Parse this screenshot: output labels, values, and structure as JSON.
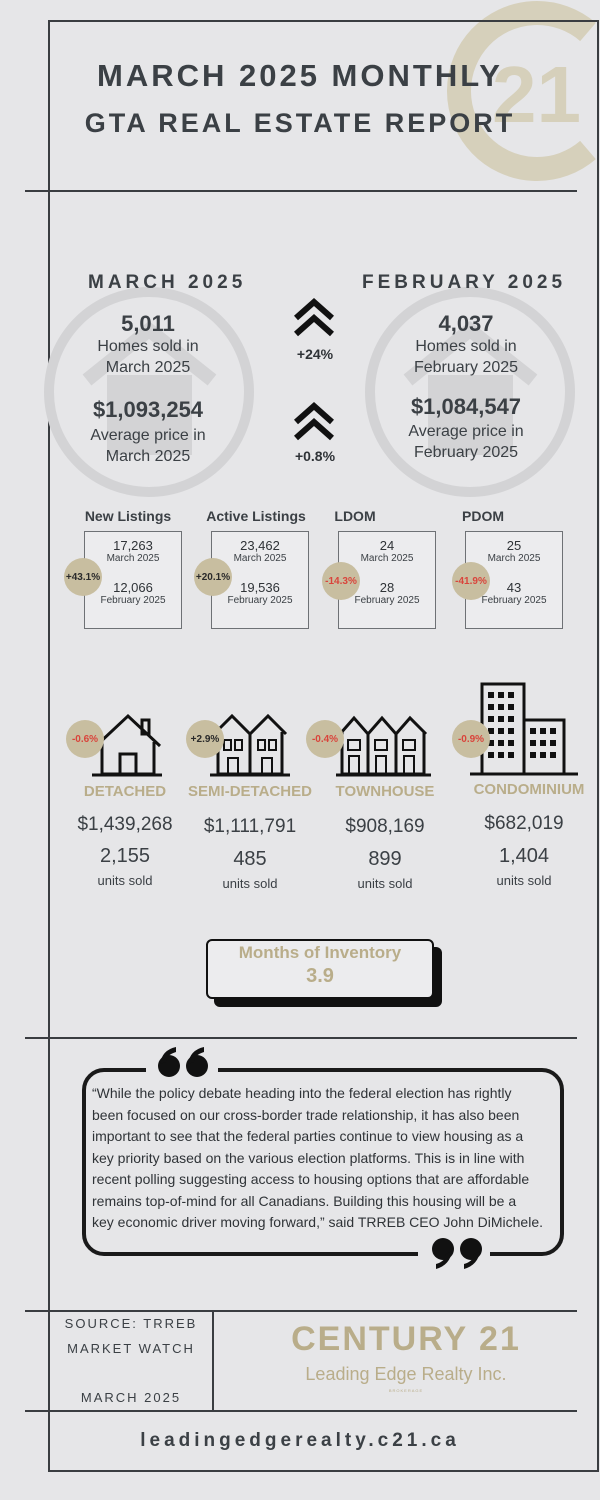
{
  "header": {
    "title_line1": "MARCH 2025 MONTHLY",
    "title_line2": "GTA REAL ESTATE REPORT"
  },
  "colors": {
    "gold": "#b9ad8a",
    "dark": "#3b4045",
    "negative": "#d9443b",
    "badge": "#c8bea0"
  },
  "summary": {
    "current": {
      "period": "MARCH 2025",
      "homes_sold": "5,011",
      "homes_sold_label_1": "Homes sold in",
      "homes_sold_label_2": "March 2025",
      "avg_price": "$1,093,254",
      "avg_price_label_1": "Average price in",
      "avg_price_label_2": "March 2025"
    },
    "previous": {
      "period": "FEBRUARY 2025",
      "homes_sold": "4,037",
      "homes_sold_label_1": "Homes sold in",
      "homes_sold_label_2": "February 2025",
      "avg_price": "$1,084,547",
      "avg_price_label_1": "Average price in",
      "avg_price_label_2": "February 2025"
    },
    "change_sales": "+24%",
    "change_price": "+0.8%"
  },
  "stats": [
    {
      "title": "New Listings",
      "change": "+43.1%",
      "trend": "pos",
      "current": "17,263",
      "current_label": "March 2025",
      "previous": "12,066",
      "previous_label": "February 2025"
    },
    {
      "title": "Active Listings",
      "change": "+20.1%",
      "trend": "pos",
      "current": "23,462",
      "current_label": "March 2025",
      "previous": "19,536",
      "previous_label": "February 2025"
    },
    {
      "title": "LDOM",
      "change": "-14.3%",
      "trend": "neg",
      "current": "24",
      "current_label": "March 2025",
      "previous": "28",
      "previous_label": "February 2025"
    },
    {
      "title": "PDOM",
      "change": "-41.9%",
      "trend": "neg",
      "current": "25",
      "current_label": "March 2025",
      "previous": "43",
      "previous_label": "February 2025"
    }
  ],
  "property_types": [
    {
      "name": "DETACHED",
      "change": "-0.6%",
      "price": "$1,439,268",
      "units": "2,155",
      "units_label": "units sold",
      "icon": "house-icon"
    },
    {
      "name": "SEMI-DETACHED",
      "change": "+2.9%",
      "price": "$1,111,791",
      "units": "485",
      "units_label": "units sold",
      "icon": "semi-detached-icon"
    },
    {
      "name": "TOWNHOUSE",
      "change": "-0.4%",
      "price": "$908,169",
      "units": "899",
      "units_label": "units sold",
      "icon": "townhouse-icon"
    },
    {
      "name": "CONDOMINIUM",
      "change": "-0.9%",
      "price": "$682,019",
      "units": "1,404",
      "units_label": "units sold",
      "icon": "condo-building-icon"
    }
  ],
  "inventory": {
    "label": "Months of Inventory",
    "value": "3.9"
  },
  "quote": {
    "lines": [
      "“While the policy debate heading into the federal election has rightly",
      "been focused on our cross-border trade relationship, it has also been",
      "important to see that the federal parties continue to view housing as a",
      "key priority based on the various election platforms. This is in line with",
      "recent polling suggesting access to housing options that are affordable",
      "remains top-of-mind for all Canadians. Building this housing will be a",
      "key economic driver moving forward,” said TRREB CEO John DiMichele."
    ]
  },
  "footer": {
    "source_line1": "SOURCE: TRREB",
    "source_line2": "MARKET WATCH",
    "date": "MARCH 2025",
    "brand": "CENTURY 21",
    "brand_sub": "Leading Edge Realty Inc.",
    "brokerage": "BROKERAGE",
    "website": "leadingedgerealty.c21.ca",
    "logo_text": "21"
  }
}
